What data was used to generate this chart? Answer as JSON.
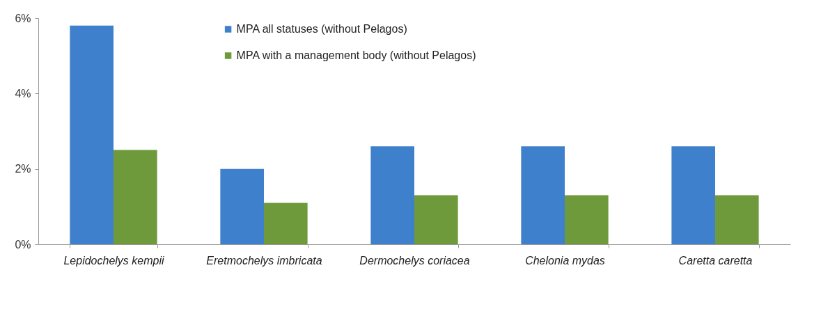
{
  "chart_data": {
    "type": "bar",
    "categories": [
      "Lepidochelys kempii",
      "Eretmochelys imbricata",
      "Dermochelys coriacea",
      "Chelonia mydas",
      "Caretta caretta"
    ],
    "series": [
      {
        "name": "MPA all statuses (without Pelagos)",
        "color": "#3f80cc",
        "values": [
          5.8,
          2.0,
          2.6,
          2.6,
          2.6
        ]
      },
      {
        "name": "MPA with a management body (without Pelagos)",
        "color": "#6f9a3c",
        "values": [
          2.5,
          1.1,
          1.3,
          1.3,
          1.3
        ]
      }
    ],
    "ylim": [
      0,
      6
    ],
    "yticks": [
      {
        "value": 0,
        "label": "0%"
      },
      {
        "value": 2,
        "label": "2%"
      },
      {
        "value": 4,
        "label": "4%"
      },
      {
        "value": 6,
        "label": "6%"
      }
    ],
    "grid": false,
    "legend": "top"
  }
}
